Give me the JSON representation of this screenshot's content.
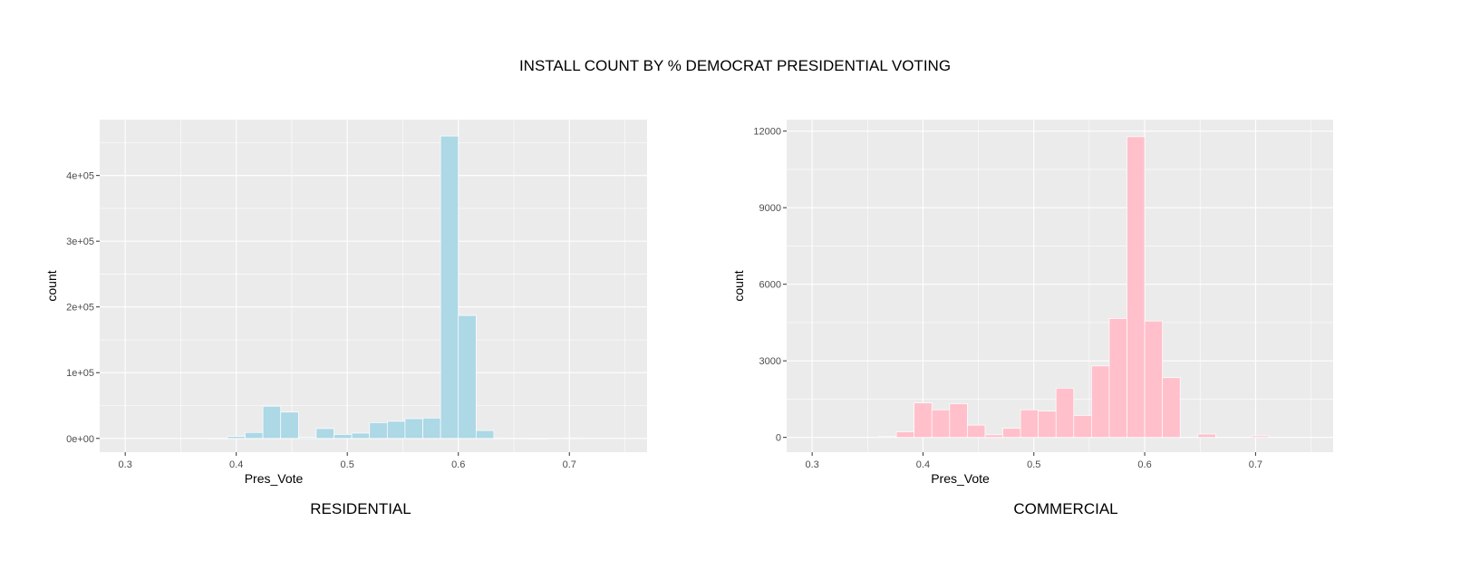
{
  "title": "INSTALL COUNT BY % DEMOCRAT PRESIDENTIAL VOTING",
  "chart_data": [
    {
      "type": "bar",
      "caption": "RESIDENTIAL",
      "xlabel": "Pres_Vote",
      "ylabel": "count",
      "fill": "#add8e6",
      "xlim": [
        0.277,
        0.77
      ],
      "ylim": [
        -21000,
        485000
      ],
      "xticks": [
        0.3,
        0.4,
        0.5,
        0.6,
        0.7
      ],
      "xtick_labels": [
        "0.3",
        "0.4",
        "0.5",
        "0.6",
        "0.7"
      ],
      "yticks": [
        0,
        100000,
        200000,
        300000,
        400000
      ],
      "ytick_labels": [
        "0e+00",
        "1e+05",
        "2e+05",
        "3e+05",
        "4e+05"
      ],
      "bin_width": 0.016,
      "bins": [
        {
          "x": 0.384,
          "count": 500
        },
        {
          "x": 0.4,
          "count": 3000
        },
        {
          "x": 0.416,
          "count": 9000
        },
        {
          "x": 0.432,
          "count": 49000
        },
        {
          "x": 0.448,
          "count": 40000
        },
        {
          "x": 0.464,
          "count": 1500
        },
        {
          "x": 0.48,
          "count": 15000
        },
        {
          "x": 0.496,
          "count": 6000
        },
        {
          "x": 0.512,
          "count": 8000
        },
        {
          "x": 0.528,
          "count": 24000
        },
        {
          "x": 0.544,
          "count": 26000
        },
        {
          "x": 0.56,
          "count": 30000
        },
        {
          "x": 0.576,
          "count": 31000
        },
        {
          "x": 0.592,
          "count": 460000
        },
        {
          "x": 0.608,
          "count": 187000
        },
        {
          "x": 0.624,
          "count": 12000
        },
        {
          "x": 0.64,
          "count": 700
        },
        {
          "x": 0.656,
          "count": 600
        },
        {
          "x": 0.672,
          "count": 300
        },
        {
          "x": 0.704,
          "count": 800
        }
      ]
    },
    {
      "type": "bar",
      "caption": "COMMERCIAL",
      "xlabel": "Pres_Vote",
      "ylabel": "count",
      "fill": "#ffc0cb",
      "xlim": [
        0.277,
        0.77
      ],
      "ylim": [
        -580,
        12450
      ],
      "xticks": [
        0.3,
        0.4,
        0.5,
        0.6,
        0.7
      ],
      "xtick_labels": [
        "0.3",
        "0.4",
        "0.5",
        "0.6",
        "0.7"
      ],
      "yticks": [
        0,
        3000,
        6000,
        9000,
        12000
      ],
      "ytick_labels": [
        "0",
        "3000",
        "6000",
        "9000",
        "12000"
      ],
      "bin_width": 0.016,
      "bins": [
        {
          "x": 0.368,
          "count": 30
        },
        {
          "x": 0.384,
          "count": 220
        },
        {
          "x": 0.4,
          "count": 1350
        },
        {
          "x": 0.416,
          "count": 1080
        },
        {
          "x": 0.432,
          "count": 1320
        },
        {
          "x": 0.448,
          "count": 480
        },
        {
          "x": 0.464,
          "count": 100
        },
        {
          "x": 0.48,
          "count": 360
        },
        {
          "x": 0.496,
          "count": 1080
        },
        {
          "x": 0.512,
          "count": 1030
        },
        {
          "x": 0.528,
          "count": 1930
        },
        {
          "x": 0.544,
          "count": 860
        },
        {
          "x": 0.56,
          "count": 2800
        },
        {
          "x": 0.576,
          "count": 4660
        },
        {
          "x": 0.592,
          "count": 11780
        },
        {
          "x": 0.608,
          "count": 4560
        },
        {
          "x": 0.624,
          "count": 2340
        },
        {
          "x": 0.656,
          "count": 130
        },
        {
          "x": 0.704,
          "count": 60
        }
      ]
    }
  ]
}
